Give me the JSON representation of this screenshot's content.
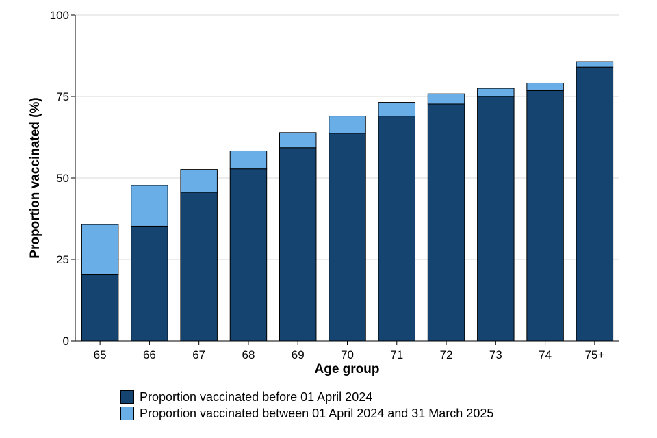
{
  "chart_data": {
    "type": "bar",
    "stacked": true,
    "categories": [
      "65",
      "66",
      "67",
      "68",
      "69",
      "70",
      "71",
      "72",
      "73",
      "74",
      "75+"
    ],
    "series": [
      {
        "name": "Proportion vaccinated before 01 April 2024",
        "color": "#154470",
        "values": [
          20.3,
          35.2,
          45.6,
          52.8,
          59.3,
          63.7,
          69.0,
          72.7,
          75.0,
          76.8,
          84.0
        ]
      },
      {
        "name": "Proportion vaccinated between 01 April 2024 and 31 March 2025",
        "color": "#6aaee8",
        "values": [
          15.4,
          12.5,
          7.0,
          5.5,
          4.6,
          5.3,
          4.2,
          3.1,
          2.5,
          2.3,
          1.7
        ]
      }
    ],
    "xlabel": "Age group",
    "ylabel": "Proportion vaccinated (%)",
    "ylim": [
      0,
      100
    ],
    "yticks": [
      "0",
      "25",
      "50",
      "75",
      "100"
    ],
    "grid": "horizontal",
    "legend_position": "bottom"
  }
}
